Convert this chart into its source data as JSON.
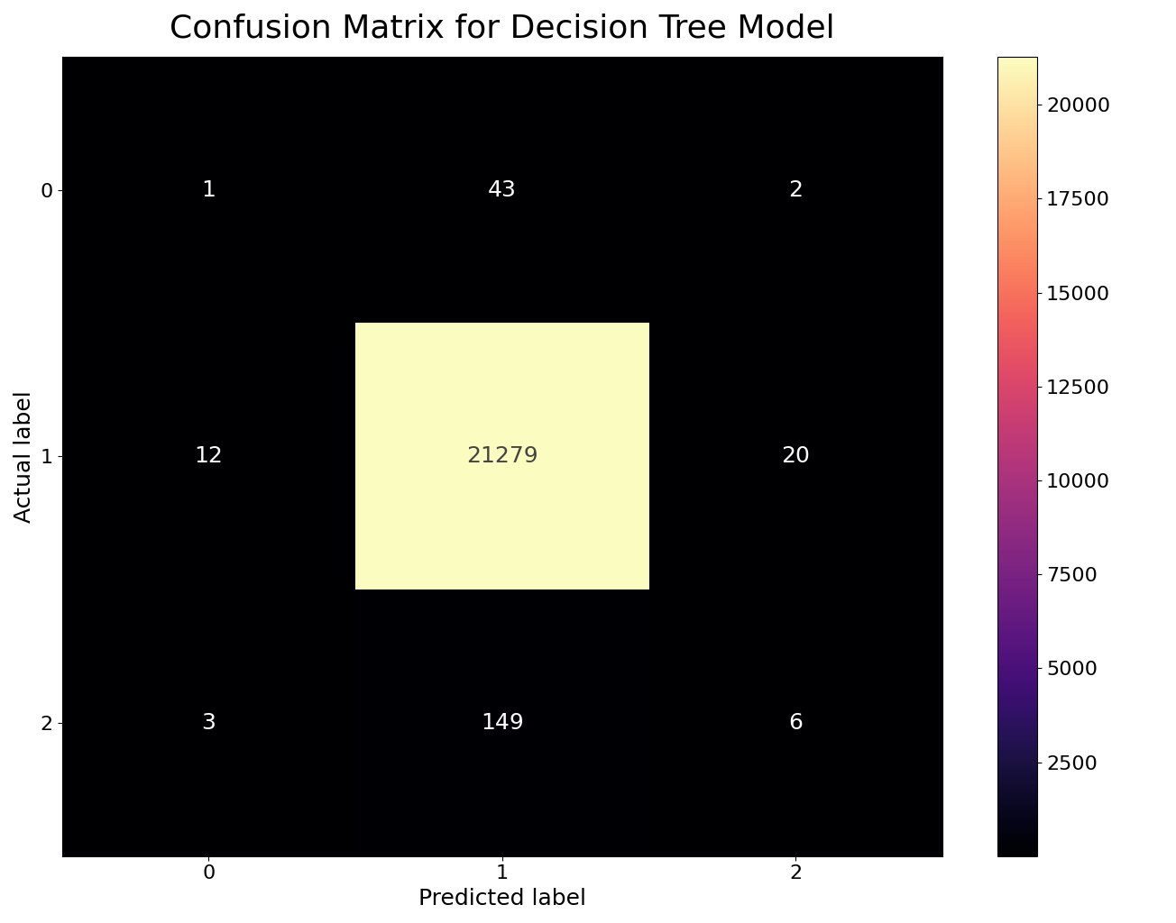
{
  "title": "Confusion Matrix for Decision Tree Model",
  "matrix": [
    [
      1,
      43,
      2
    ],
    [
      12,
      21279,
      20
    ],
    [
      3,
      149,
      6
    ]
  ],
  "xlabel": "Predicted label",
  "ylabel": "Actual label",
  "x_tick_labels": [
    "0",
    "1",
    "2"
  ],
  "y_tick_labels": [
    "0",
    "1",
    "2"
  ],
  "colormap": "magma",
  "title_fontsize": 26,
  "label_fontsize": 18,
  "tick_fontsize": 16,
  "annotation_fontsize": 18,
  "figsize": [
    13.04,
    10.24
  ],
  "dpi": 100,
  "text_color_threshold": 10000,
  "text_color_light": "white",
  "text_color_dark": "#444444",
  "background_color": "white"
}
